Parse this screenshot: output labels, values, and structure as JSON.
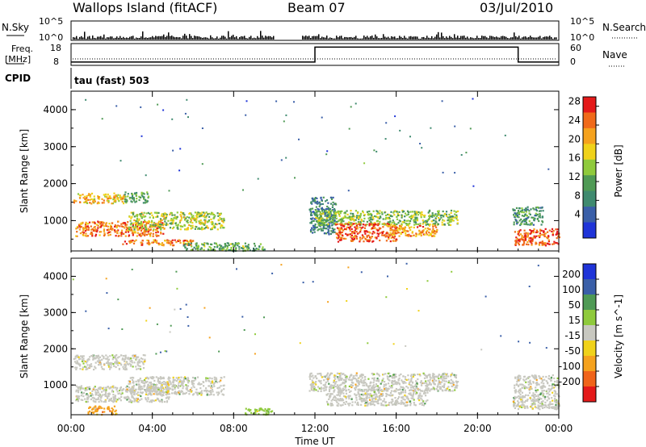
{
  "header": {
    "station": "Wallops Island (fitACF)",
    "beam": "Beam 07",
    "date": "03/Jul/2010"
  },
  "top_panels": {
    "nsky_label": "N.Sky",
    "nsky_ticks": [
      "10^5",
      "10^0"
    ],
    "nsearch_label": "N.Search",
    "nsearch_ticks": [
      "10^5",
      "10^0"
    ],
    "freq_label_1": "Freq.",
    "freq_label_2": "[MHz]",
    "freq_ticks": [
      "18",
      "8"
    ],
    "nave_label": "Nave",
    "nave_ticks": [
      "60",
      "0"
    ],
    "cpid_label": "CPID",
    "cpid_value": "tau (fast) 503"
  },
  "colors": {
    "power_scale": [
      "#1f34d8",
      "#3a5fa8",
      "#3f8a6f",
      "#4f9a55",
      "#8fca3c",
      "#f0d21a",
      "#f5a21e",
      "#f06a1a",
      "#e41a1a"
    ],
    "velocity_scale": [
      "#e41a1a",
      "#f0641a",
      "#f5a21e",
      "#f0d21a",
      "#c8c8c0",
      "#8fca3c",
      "#4f9a55",
      "#3a5fa8",
      "#1f34d8"
    ],
    "ground_scatter": "#c8c8c0"
  },
  "chart_data": [
    {
      "type": "heatmap",
      "title": "",
      "xlabel": "Time UT",
      "ylabel": "Slant Range [km]",
      "x_ticks": [
        "00:00",
        "04:00",
        "08:00",
        "12:00",
        "16:00",
        "20:00",
        "00:00"
      ],
      "xlim_hours": [
        0,
        24
      ],
      "y_ticks": [
        1000,
        2000,
        3000,
        4000
      ],
      "ylim": [
        180,
        4500
      ],
      "colorbar_label": "Power [dB]",
      "colorbar_ticks": [
        4,
        8,
        12,
        16,
        20,
        24,
        28
      ],
      "colorbar_range": [
        0,
        30
      ],
      "regions": [
        {
          "t0": 0.1,
          "t1": 2.6,
          "r0": 1480,
          "r1": 1760,
          "value": 20
        },
        {
          "t0": 2.6,
          "t1": 3.8,
          "r0": 1500,
          "r1": 1800,
          "value": 12
        },
        {
          "t0": 0.2,
          "t1": 4.5,
          "r0": 600,
          "r1": 1000,
          "value": 24
        },
        {
          "t0": 2.8,
          "t1": 7.5,
          "r0": 780,
          "r1": 1250,
          "value": 16
        },
        {
          "t0": 2.5,
          "t1": 6.0,
          "r0": 350,
          "r1": 500,
          "value": 24
        },
        {
          "t0": 5.5,
          "t1": 9.5,
          "r0": 200,
          "r1": 420,
          "value": 12
        },
        {
          "t0": 11.7,
          "t1": 13.0,
          "r0": 650,
          "r1": 1650,
          "value": 8
        },
        {
          "t0": 12.0,
          "t1": 19.0,
          "r0": 900,
          "r1": 1300,
          "value": 14
        },
        {
          "t0": 13.0,
          "t1": 16.0,
          "r0": 450,
          "r1": 950,
          "value": 26
        },
        {
          "t0": 15.5,
          "t1": 18.0,
          "r0": 600,
          "r1": 900,
          "value": 22
        },
        {
          "t0": 21.8,
          "t1": 24.0,
          "r0": 350,
          "r1": 800,
          "value": 26
        },
        {
          "t0": 21.7,
          "t1": 23.2,
          "r0": 900,
          "r1": 1400,
          "value": 10
        }
      ]
    },
    {
      "type": "heatmap",
      "title": "",
      "xlabel": "Time UT",
      "ylabel": "Slant Range [km]",
      "x_ticks": [
        "00:00",
        "04:00",
        "08:00",
        "12:00",
        "16:00",
        "20:00",
        "00:00"
      ],
      "xlim_hours": [
        0,
        24
      ],
      "y_ticks": [
        1000,
        2000,
        3000,
        4000
      ],
      "ylim": [
        180,
        4500
      ],
      "colorbar_label": "Velocity [m s^-1]",
      "colorbar_ticks": [
        200,
        100,
        50,
        15,
        -15,
        -50,
        -100,
        -200
      ],
      "colorbar_range": [
        -250,
        250
      ],
      "regions": [
        {
          "t0": 0.1,
          "t1": 3.6,
          "r0": 1450,
          "r1": 1850,
          "value": 0
        },
        {
          "t0": 0.2,
          "t1": 4.8,
          "r0": 550,
          "r1": 1000,
          "value": 0
        },
        {
          "t0": 2.8,
          "t1": 7.5,
          "r0": 750,
          "r1": 1250,
          "value": 0
        },
        {
          "t0": 0.8,
          "t1": 2.2,
          "r0": 200,
          "r1": 450,
          "value": -60
        },
        {
          "t0": 8.5,
          "t1": 10.0,
          "r0": 200,
          "r1": 380,
          "value": 40
        },
        {
          "t0": 11.7,
          "t1": 19.0,
          "r0": 850,
          "r1": 1350,
          "value": 0
        },
        {
          "t0": 12.5,
          "t1": 17.5,
          "r0": 450,
          "r1": 900,
          "value": 0
        },
        {
          "t0": 21.7,
          "t1": 24.0,
          "r0": 350,
          "r1": 1300,
          "value": 0
        }
      ]
    }
  ]
}
